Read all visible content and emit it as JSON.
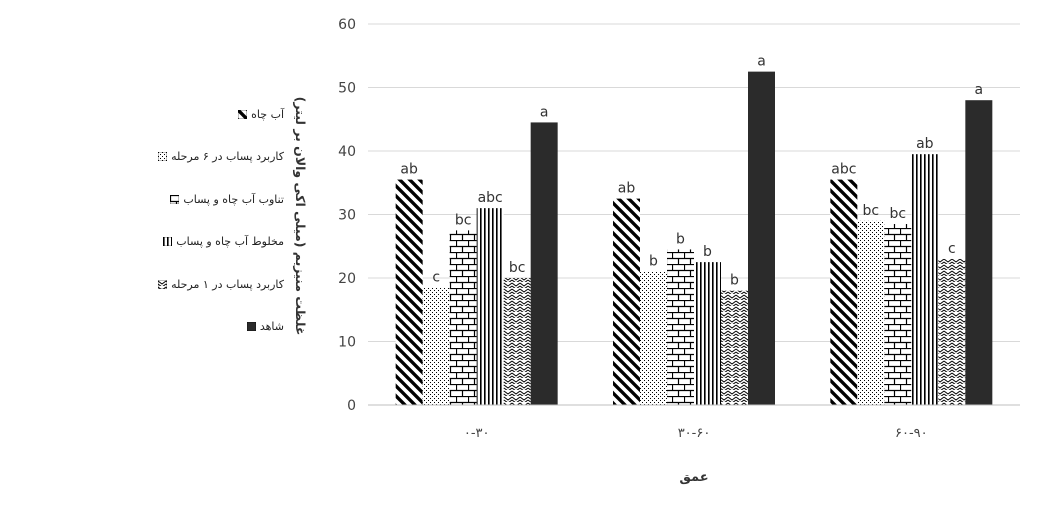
{
  "chart_data": {
    "type": "bar",
    "categories": [
      "۰-۳۰",
      "۳۰-۶۰",
      "۶۰-۹۰"
    ],
    "xlabel": "عمق",
    "ylabel": "غلظت منیزیم (میلی اکی والان بر لیتر)",
    "ylim": [
      0,
      60
    ],
    "yticks": [
      0,
      10,
      20,
      30,
      40,
      50,
      60
    ],
    "grid": true,
    "legend_position": "left",
    "series": [
      {
        "name": "آب چاه",
        "pattern": "wide-diagonal",
        "values": [
          35.5,
          32.5,
          35.5
        ],
        "labels": [
          "ab",
          "ab",
          "abc"
        ]
      },
      {
        "name": "کاربرد پساب در ۶ مرحله",
        "pattern": "dots",
        "values": [
          18.5,
          21,
          29
        ],
        "labels": [
          "c",
          "b",
          "bc"
        ]
      },
      {
        "name": "تناوب آب چاه و پساب",
        "pattern": "bricks",
        "values": [
          27.5,
          24.5,
          28.5
        ],
        "labels": [
          "bc",
          "b",
          "bc"
        ]
      },
      {
        "name": "مخلوط آب چاه و پساب",
        "pattern": "vertical-lines",
        "values": [
          31,
          22.5,
          39.5
        ],
        "labels": [
          "abc",
          "b",
          "ab"
        ]
      },
      {
        "name": "کاربرد پساب در ۱ مرحله",
        "pattern": "zigzag",
        "values": [
          20,
          18,
          23
        ],
        "labels": [
          "bc",
          "b",
          "c"
        ]
      },
      {
        "name": "شاهد",
        "pattern": "solid",
        "values": [
          44.5,
          52.5,
          48
        ],
        "labels": [
          "a",
          "a",
          "a"
        ]
      }
    ]
  },
  "colors": {
    "bar_dark": "#2b2b2b",
    "grid": "#d9d9d9",
    "axis_text": "#444444"
  }
}
